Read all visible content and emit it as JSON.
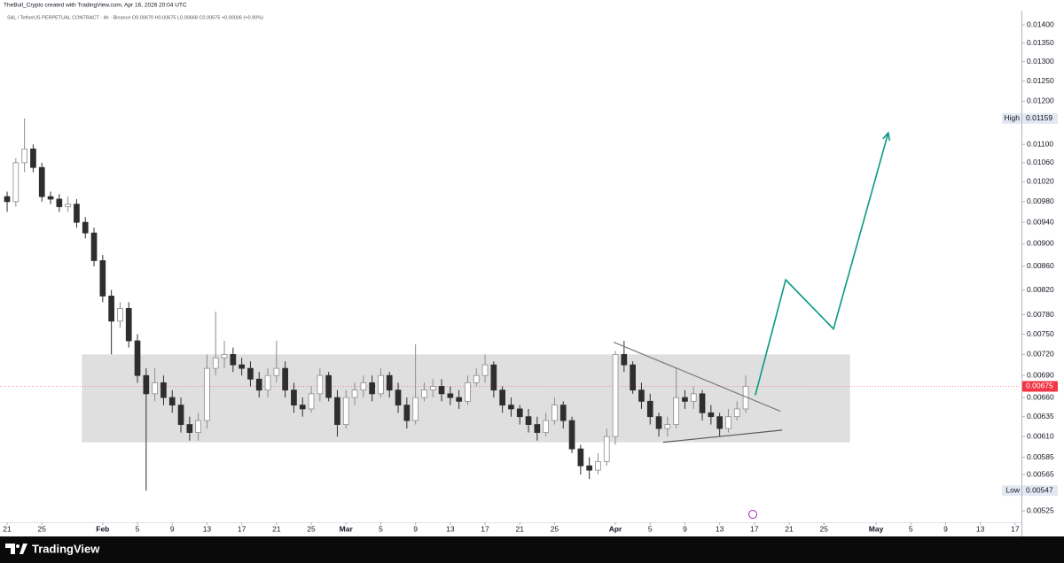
{
  "header": "TheBull_Crypto created with TradingView.com, Apr 16, 2026 20:04 UTC",
  "footer": "TradingView",
  "chart_data": {
    "type": "candlestick",
    "legend_text": "SAL / TetherUS PERPETUAL CONTRACT · 4h · Binance   O0.00670 H0.00675 L0.00668 C0.00675 +0.00006 (+0.90%)",
    "x": [
      0,
      1,
      2,
      3,
      4,
      5,
      6,
      7,
      8,
      9,
      10,
      11,
      12,
      13,
      14,
      15,
      16,
      17,
      18,
      19,
      20,
      21,
      22,
      23,
      24,
      25,
      26,
      27,
      28,
      29,
      30,
      31,
      32,
      33,
      34,
      35,
      36,
      37,
      38,
      39,
      40,
      41,
      42,
      43,
      44,
      45,
      46,
      47,
      48,
      49,
      50,
      51,
      52,
      53,
      54,
      55,
      56,
      57,
      58,
      59,
      60,
      61,
      62,
      63,
      64,
      65,
      66,
      67,
      68,
      69,
      70,
      71,
      72,
      73,
      74,
      75,
      76,
      77,
      78,
      79,
      80,
      81,
      82,
      83,
      84,
      85
    ],
    "open": [
      0.0099,
      0.0098,
      0.0106,
      0.0109,
      0.0105,
      0.0099,
      0.00985,
      0.0097,
      0.00975,
      0.0094,
      0.0092,
      0.0087,
      0.0081,
      0.0077,
      0.0079,
      0.0074,
      0.0069,
      0.00665,
      0.0068,
      0.0066,
      0.0065,
      0.00625,
      0.00615,
      0.0063,
      0.007,
      0.00715,
      0.0072,
      0.00705,
      0.007,
      0.00685,
      0.0067,
      0.0069,
      0.007,
      0.0067,
      0.0065,
      0.00645,
      0.00665,
      0.0069,
      0.0066,
      0.00625,
      0.0066,
      0.0067,
      0.0068,
      0.00665,
      0.0069,
      0.0067,
      0.0065,
      0.0063,
      0.0066,
      0.0067,
      0.00675,
      0.00665,
      0.0066,
      0.00655,
      0.0068,
      0.0069,
      0.00705,
      0.0067,
      0.0065,
      0.00645,
      0.00635,
      0.00625,
      0.00615,
      0.0063,
      0.0065,
      0.0063,
      0.00595,
      0.00575,
      0.0057,
      0.0058,
      0.0061,
      0.0072,
      0.00705,
      0.0067,
      0.00655,
      0.00635,
      0.0062,
      0.00625,
      0.0066,
      0.00655,
      0.00665,
      0.0064,
      0.00635,
      0.0062,
      0.00635,
      0.00645
    ],
    "high": [
      0.01,
      0.0107,
      0.01159,
      0.011,
      0.0106,
      0.01,
      0.00995,
      0.0099,
      0.00985,
      0.0095,
      0.0093,
      0.0088,
      0.0082,
      0.008,
      0.008,
      0.0075,
      0.007,
      0.007,
      0.0069,
      0.0067,
      0.0066,
      0.00635,
      0.0064,
      0.0072,
      0.00785,
      0.0074,
      0.0073,
      0.00715,
      0.0071,
      0.00695,
      0.007,
      0.0074,
      0.0071,
      0.0068,
      0.0066,
      0.00675,
      0.007,
      0.00695,
      0.0067,
      0.0067,
      0.0068,
      0.0069,
      0.0069,
      0.007,
      0.00695,
      0.0068,
      0.0066,
      0.00735,
      0.0068,
      0.00685,
      0.00685,
      0.00675,
      0.0067,
      0.0069,
      0.007,
      0.0072,
      0.0071,
      0.00675,
      0.0066,
      0.0065,
      0.00645,
      0.00635,
      0.0064,
      0.0066,
      0.00655,
      0.00635,
      0.006,
      0.00585,
      0.0059,
      0.0062,
      0.00725,
      0.0074,
      0.0071,
      0.0068,
      0.00665,
      0.0064,
      0.00635,
      0.007,
      0.0067,
      0.00675,
      0.0067,
      0.0065,
      0.0064,
      0.00645,
      0.00655,
      0.0069
    ],
    "low": [
      0.0096,
      0.0097,
      0.0104,
      0.0104,
      0.0098,
      0.00975,
      0.0096,
      0.0096,
      0.0093,
      0.0091,
      0.0086,
      0.008,
      0.0072,
      0.0076,
      0.0073,
      0.0068,
      0.00547,
      0.00655,
      0.0065,
      0.0064,
      0.00615,
      0.00605,
      0.00605,
      0.0062,
      0.0069,
      0.007,
      0.00695,
      0.0069,
      0.00675,
      0.0066,
      0.0066,
      0.0068,
      0.0066,
      0.0064,
      0.00635,
      0.0064,
      0.00655,
      0.00655,
      0.0061,
      0.0062,
      0.0065,
      0.0066,
      0.00655,
      0.0066,
      0.0066,
      0.0064,
      0.0062,
      0.00625,
      0.00655,
      0.0066,
      0.00655,
      0.0065,
      0.00645,
      0.0065,
      0.00675,
      0.0068,
      0.0066,
      0.0064,
      0.00635,
      0.00625,
      0.00615,
      0.00605,
      0.0061,
      0.00625,
      0.0062,
      0.0059,
      0.00565,
      0.0056,
      0.00565,
      0.00575,
      0.006,
      0.00695,
      0.00665,
      0.00645,
      0.00625,
      0.0061,
      0.0061,
      0.0062,
      0.00645,
      0.00645,
      0.0063,
      0.00625,
      0.0061,
      0.00615,
      0.0063,
      0.0064
    ],
    "close": [
      0.0098,
      0.0106,
      0.0109,
      0.0105,
      0.0099,
      0.00985,
      0.0097,
      0.00975,
      0.0094,
      0.0092,
      0.0087,
      0.0081,
      0.0077,
      0.0079,
      0.0074,
      0.0069,
      0.00665,
      0.0068,
      0.0066,
      0.0065,
      0.00625,
      0.00615,
      0.0063,
      0.007,
      0.00715,
      0.0072,
      0.00705,
      0.007,
      0.00685,
      0.0067,
      0.0069,
      0.007,
      0.0067,
      0.0065,
      0.00645,
      0.00665,
      0.0069,
      0.0066,
      0.00625,
      0.0066,
      0.0067,
      0.0068,
      0.00665,
      0.0069,
      0.0067,
      0.0065,
      0.0063,
      0.0066,
      0.0067,
      0.00675,
      0.00665,
      0.0066,
      0.00655,
      0.0068,
      0.0069,
      0.00705,
      0.0067,
      0.0065,
      0.00645,
      0.00635,
      0.00625,
      0.00615,
      0.0063,
      0.0065,
      0.0063,
      0.00595,
      0.00575,
      0.0057,
      0.0058,
      0.0061,
      0.0072,
      0.00705,
      0.0067,
      0.00655,
      0.00635,
      0.0062,
      0.00625,
      0.0066,
      0.00655,
      0.00665,
      0.0064,
      0.00635,
      0.0062,
      0.00635,
      0.00645,
      0.00675
    ],
    "up_color": "#8c8c8c",
    "down_color": "#2e2e2e",
    "log_scale": true,
    "grid": false,
    "ylim": [
      0.005131,
      0.01441
    ],
    "yticks": [
      {
        "value": 0.014,
        "label": "0.01400"
      },
      {
        "value": 0.0135,
        "label": "0.01350"
      },
      {
        "value": 0.013,
        "label": "0.01300"
      },
      {
        "value": 0.0125,
        "label": "0.01250"
      },
      {
        "value": 0.012,
        "label": "0.01200"
      },
      {
        "value": 0.011,
        "label": "0.01100"
      },
      {
        "value": 0.0106,
        "label": "0.01060"
      },
      {
        "value": 0.0102,
        "label": "0.01020"
      },
      {
        "value": 0.0098,
        "label": "0.00980"
      },
      {
        "value": 0.0094,
        "label": "0.00940"
      },
      {
        "value": 0.009,
        "label": "0.00900"
      },
      {
        "value": 0.0086,
        "label": "0.00860"
      },
      {
        "value": 0.0082,
        "label": "0.00820"
      },
      {
        "value": 0.0078,
        "label": "0.00780"
      },
      {
        "value": 0.0075,
        "label": "0.00750"
      },
      {
        "value": 0.0072,
        "label": "0.00720"
      },
      {
        "value": 0.0069,
        "label": "0.00690"
      },
      {
        "value": 0.0066,
        "label": "0.00660"
      },
      {
        "value": 0.00635,
        "label": "0.00635"
      },
      {
        "value": 0.0061,
        "label": "0.00610"
      },
      {
        "value": 0.00585,
        "label": "0.00585"
      },
      {
        "value": 0.00565,
        "label": "0.00565"
      },
      {
        "value": 0.00525,
        "label": "0.00525"
      }
    ],
    "xlim": [
      -0.82,
      116.73
    ],
    "xticks": [
      {
        "value": 0,
        "label": "21"
      },
      {
        "value": 4,
        "label": "25"
      },
      {
        "value": 11,
        "label": "Feb"
      },
      {
        "value": 15,
        "label": "5"
      },
      {
        "value": 19,
        "label": "9"
      },
      {
        "value": 23,
        "label": "13"
      },
      {
        "value": 27,
        "label": "17"
      },
      {
        "value": 31,
        "label": "21"
      },
      {
        "value": 35,
        "label": "25"
      },
      {
        "value": 39,
        "label": "Mar"
      },
      {
        "value": 43,
        "label": "5"
      },
      {
        "value": 47,
        "label": "9"
      },
      {
        "value": 51,
        "label": "13"
      },
      {
        "value": 55,
        "label": "17"
      },
      {
        "value": 59,
        "label": "21"
      },
      {
        "value": 63,
        "label": "25"
      },
      {
        "value": 70,
        "label": "Apr"
      },
      {
        "value": 74,
        "label": "5"
      },
      {
        "value": 78,
        "label": "9"
      },
      {
        "value": 82,
        "label": "13"
      },
      {
        "value": 86,
        "label": "17"
      },
      {
        "value": 90,
        "label": "21"
      },
      {
        "value": 94,
        "label": "25"
      },
      {
        "value": 100,
        "label": "May"
      },
      {
        "value": 104,
        "label": "5"
      },
      {
        "value": 108,
        "label": "9"
      },
      {
        "value": 112,
        "label": "13"
      },
      {
        "value": 116,
        "label": "17"
      }
    ],
    "price_labels": [
      {
        "name": "High",
        "value": 0.01159,
        "color": "#e3e9f3"
      },
      {
        "value": 0.00675,
        "color": "#f23645",
        "line": true
      },
      {
        "name": "Low",
        "value": 0.00547,
        "color": "#e3e9f3"
      }
    ],
    "annotations": [
      {
        "shape": "rect",
        "x": [
          8.6,
          97
        ],
        "y": [
          0.00603,
          0.0072
        ],
        "color": "#d9d9d9"
      },
      {
        "shape": "line",
        "x": [
          69.8,
          89
        ],
        "y": [
          0.00738,
          0.00642
        ],
        "color": "#7a7a7a"
      },
      {
        "shape": "line",
        "x": [
          75.5,
          89.2
        ],
        "y": [
          0.00603,
          0.00618
        ],
        "color": "#5a5a5a"
      },
      {
        "shape": "arrow",
        "x": [
          86.1,
          89.6,
          95.1,
          101.4
        ],
        "y": [
          0.00663,
          0.00837,
          0.00758,
          0.01126
        ],
        "color": "#089981"
      }
    ]
  }
}
